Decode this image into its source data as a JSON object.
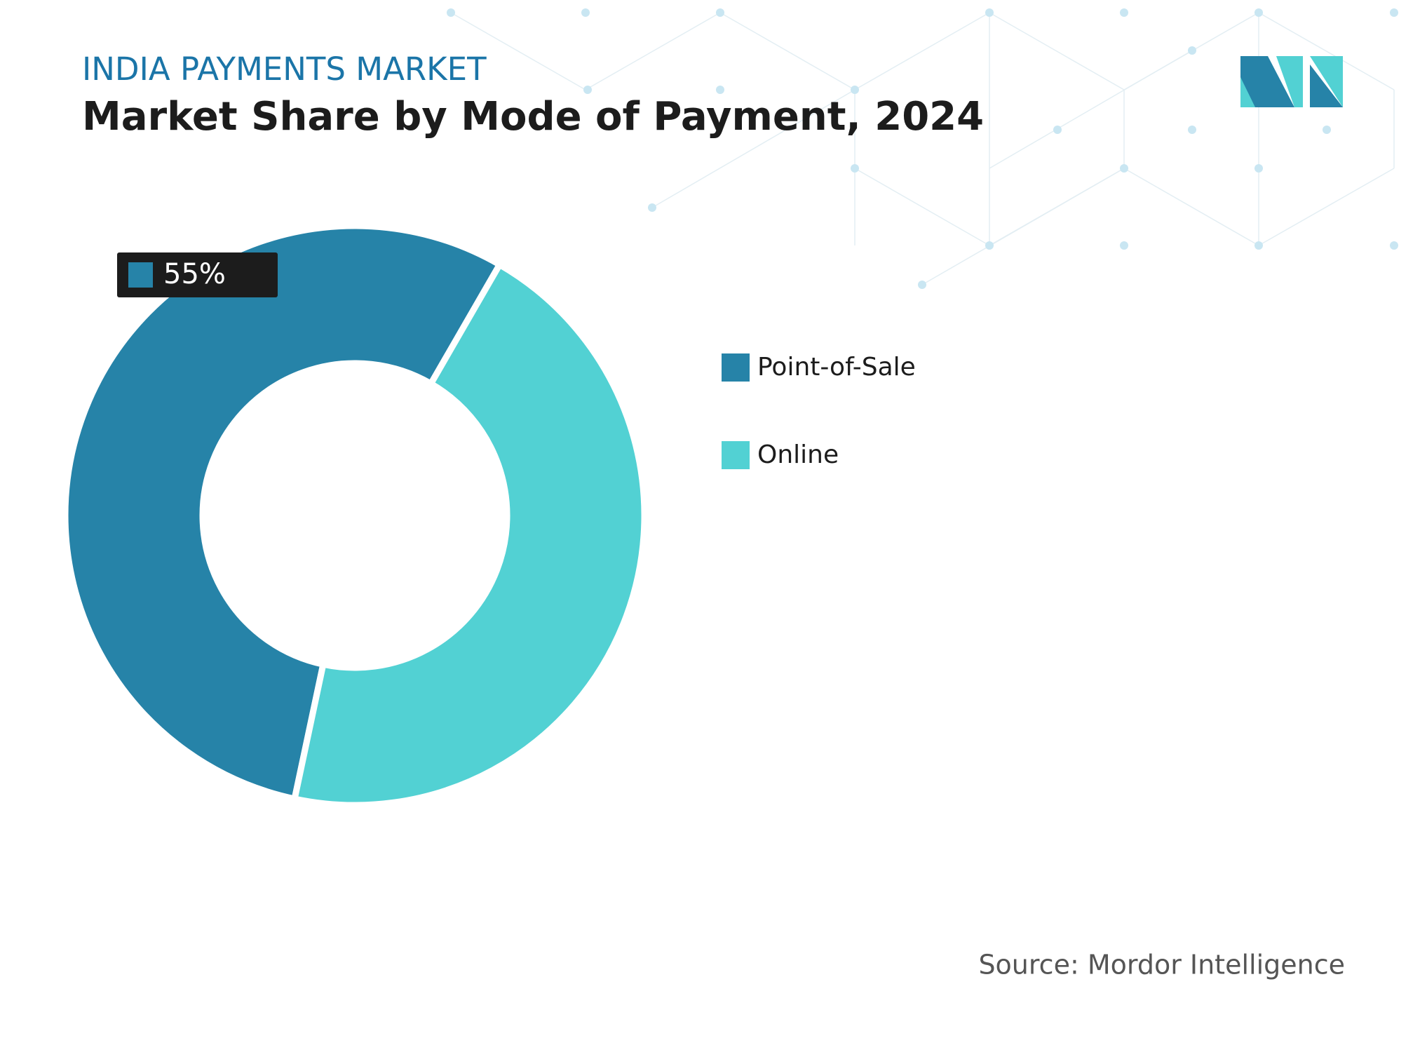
{
  "chart_data": {
    "type": "donut",
    "title": "INDIA PAYMENTS MARKET",
    "subtitle": "Market Share by Mode of Payment, 2024",
    "categories": [
      "Point-of-Sale",
      "Online"
    ],
    "values": [
      55,
      45
    ],
    "value_labels": [
      "55%",
      null
    ],
    "colors": [
      "#2683a8",
      "#52d1d3"
    ],
    "legend": "right",
    "source": "Source: Mordor Intelligence"
  }
}
